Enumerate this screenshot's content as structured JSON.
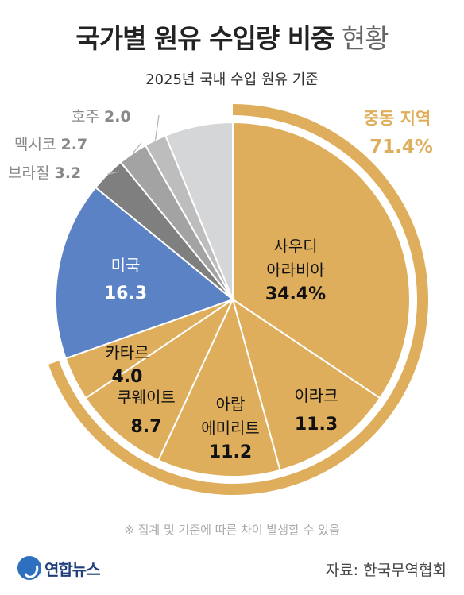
{
  "header": {
    "title_main": "국가별 원유 수입량 비중",
    "title_sub": " 현황",
    "subtitle": "2025년 국내 수입 원유 기준"
  },
  "chart_data": {
    "type": "pie",
    "slices": [
      {
        "name": "사우디 아라비아",
        "lines": [
          "사우디",
          "아라비아"
        ],
        "value": 34.4,
        "value_text": "34.4%",
        "color": "#dfae5c",
        "label_color": "#111",
        "group": "middle-east"
      },
      {
        "name": "이라크",
        "lines": [
          "이라크"
        ],
        "value": 11.3,
        "value_text": "11.3",
        "color": "#dfae5c",
        "label_color": "#111",
        "group": "middle-east"
      },
      {
        "name": "아랍 에미리트",
        "lines": [
          "아랍",
          "에미리트"
        ],
        "value": 11.2,
        "value_text": "11.2",
        "color": "#dfae5c",
        "label_color": "#111",
        "group": "middle-east"
      },
      {
        "name": "쿠웨이트",
        "lines": [
          "쿠웨이트"
        ],
        "value": 8.7,
        "value_text": "8.7",
        "color": "#dfae5c",
        "label_color": "#111",
        "group": "middle-east"
      },
      {
        "name": "카타르",
        "lines": [
          "카타르"
        ],
        "value": 4.0,
        "value_text": "4.0",
        "color": "#dfae5c",
        "label_color": "#111",
        "group": "middle-east"
      },
      {
        "name": "미국",
        "lines": [
          "미국"
        ],
        "value": 16.3,
        "value_text": "16.3",
        "color": "#5b82c4",
        "label_color": "#ffffff"
      },
      {
        "name": "브라질",
        "lines": [
          "브라질"
        ],
        "value": 3.2,
        "value_text": "3.2",
        "color": "#7f7f7f",
        "label_color": "#888"
      },
      {
        "name": "멕시코",
        "lines": [
          "멕시코"
        ],
        "value": 2.7,
        "value_text": "2.7",
        "color": "#a3a3a3",
        "label_color": "#888"
      },
      {
        "name": "호주",
        "lines": [
          "호주"
        ],
        "value": 2.0,
        "value_text": "2.0",
        "color": "#bdbdbd",
        "label_color": "#888"
      },
      {
        "name": "",
        "lines": [],
        "value": 6.2,
        "value_text": "",
        "color": "#d5d6d8",
        "label_color": "#888"
      }
    ],
    "group_annotation": {
      "label": "중동 지역",
      "value": "71.4%",
      "color": "#dfae5c"
    },
    "start_angle": "12 o'clock",
    "direction": "clockwise"
  },
  "footnote": "※ 집계 및 기준에 따른 차이 발생할 수 있음",
  "logo": {
    "text": "연합뉴스",
    "icon": "yonhap-logo-icon"
  },
  "source": "자료: 한국무역협회"
}
